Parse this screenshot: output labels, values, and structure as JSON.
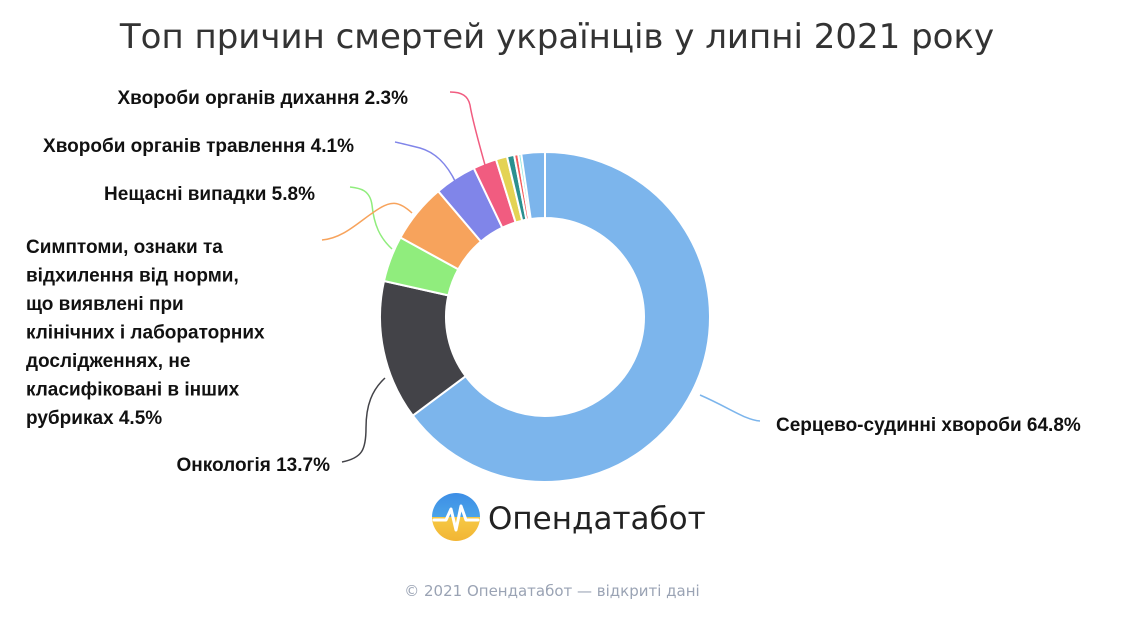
{
  "chart_data": {
    "type": "pie",
    "variant": "donut",
    "title": "Топ причин смертей українців у липні 2021 року",
    "slices": [
      {
        "label": "Серцево-судинні хвороби",
        "value": 64.8,
        "display": "Серцево-судинні хвороби 64.8%",
        "color": "#7cb5ec"
      },
      {
        "label": "Онкологія",
        "value": 13.7,
        "display": "Онкологія 13.7%",
        "color": "#434348"
      },
      {
        "label": "Симптоми, ознаки та відхилення від норми, що виявлені при клінічних і лабораторних дослідженнях, не класифіковані в інших рубриках",
        "value": 4.5,
        "display": [
          "Симптоми, ознаки та",
          "відхилення від норми,",
          "що виявлені при",
          "клінічних і лабораторних",
          "дослідженнях, не",
          "класифіковані в інших",
          "рубриках 4.5%"
        ],
        "color": "#90ed7d"
      },
      {
        "label": "Нещасні випадки",
        "value": 5.8,
        "display": "Нещасні випадки 5.8%",
        "color": "#f7a35c"
      },
      {
        "label": "Хвороби органів травлення",
        "value": 4.1,
        "display": "Хвороби органів травлення 4.1%",
        "color": "#8085e9"
      },
      {
        "label": "Хвороби органів дихання",
        "value": 2.3,
        "display": "Хвороби органів дихання 2.3%",
        "color": "#f15c80"
      },
      {
        "label": "",
        "value": 1.1,
        "display": "",
        "color": "#e4d354"
      },
      {
        "label": "",
        "value": 0.7,
        "display": "",
        "color": "#2b908f"
      },
      {
        "label": "",
        "value": 0.4,
        "display": "",
        "color": "#f45b5b"
      },
      {
        "label": "",
        "value": 0.3,
        "display": "",
        "color": "#91e8e1"
      },
      {
        "label": "",
        "value": 2.3,
        "display": "",
        "color": "#7cb5ec"
      }
    ]
  },
  "brand": {
    "name": "Опендатабот",
    "logo_icon": "opendatabot-logo-icon"
  },
  "footer": "© 2021 Опендатабот — відкриті дані"
}
